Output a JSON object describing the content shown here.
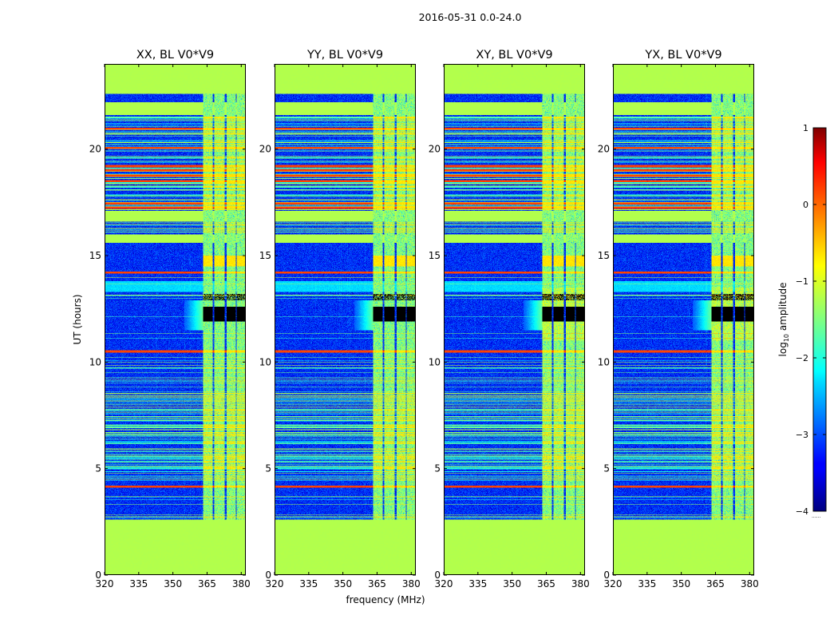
{
  "chart_data": {
    "type": "heatmap",
    "title": "2016-05-31 0.0-24.0",
    "ylabel": "UT (hours)",
    "xlabel": "frequency (MHz)",
    "xlim": [
      320,
      382
    ],
    "ylim": [
      0,
      24
    ],
    "x_ticks": [
      320,
      335,
      350,
      365,
      380
    ],
    "y_ticks": [
      0,
      5,
      10,
      15,
      20
    ],
    "panels": [
      {
        "title": "XX, BL V0*V9",
        "cross": false,
        "burst_strength": 0.75
      },
      {
        "title": "YY, BL V0*V9",
        "cross": false,
        "burst_strength": 1.0
      },
      {
        "title": "XY, BL V0*V9",
        "cross": true,
        "burst_strength": 0.85
      },
      {
        "title": "YX, BL V0*V9",
        "cross": true,
        "burst_strength": 0.85
      }
    ],
    "colorbar": {
      "label": "log",
      "label_sub": "10",
      "label_rest": " amplitude",
      "range": [
        -4,
        1
      ],
      "ticks": [
        "1",
        "0",
        "−1",
        "−2",
        "−3",
        "−4"
      ],
      "tick_values": [
        1,
        0,
        -1,
        -2,
        -3,
        -4
      ],
      "footnote": "......"
    },
    "flagged_value": -1.25,
    "background_value": -3.2,
    "rfi_freq_bands_mhz": [
      [
        363.2,
        367.4
      ],
      [
        368.2,
        372.8
      ],
      [
        373.6,
        377.6
      ],
      [
        378.0,
        382.0
      ]
    ],
    "flagged_time_ranges_h": [
      [
        0.0,
        2.6
      ],
      [
        15.6,
        16.0
      ],
      [
        16.6,
        17.1
      ],
      [
        21.6,
        22.2
      ],
      [
        22.6,
        24.0
      ]
    ],
    "strong_rfi_lines_h": [
      4.15,
      10.5,
      14.2,
      17.25,
      17.45,
      18.5,
      18.75,
      19.0,
      19.2,
      20.05,
      20.95
    ],
    "burst_time_h": [
      11.9,
      12.6
    ]
  }
}
